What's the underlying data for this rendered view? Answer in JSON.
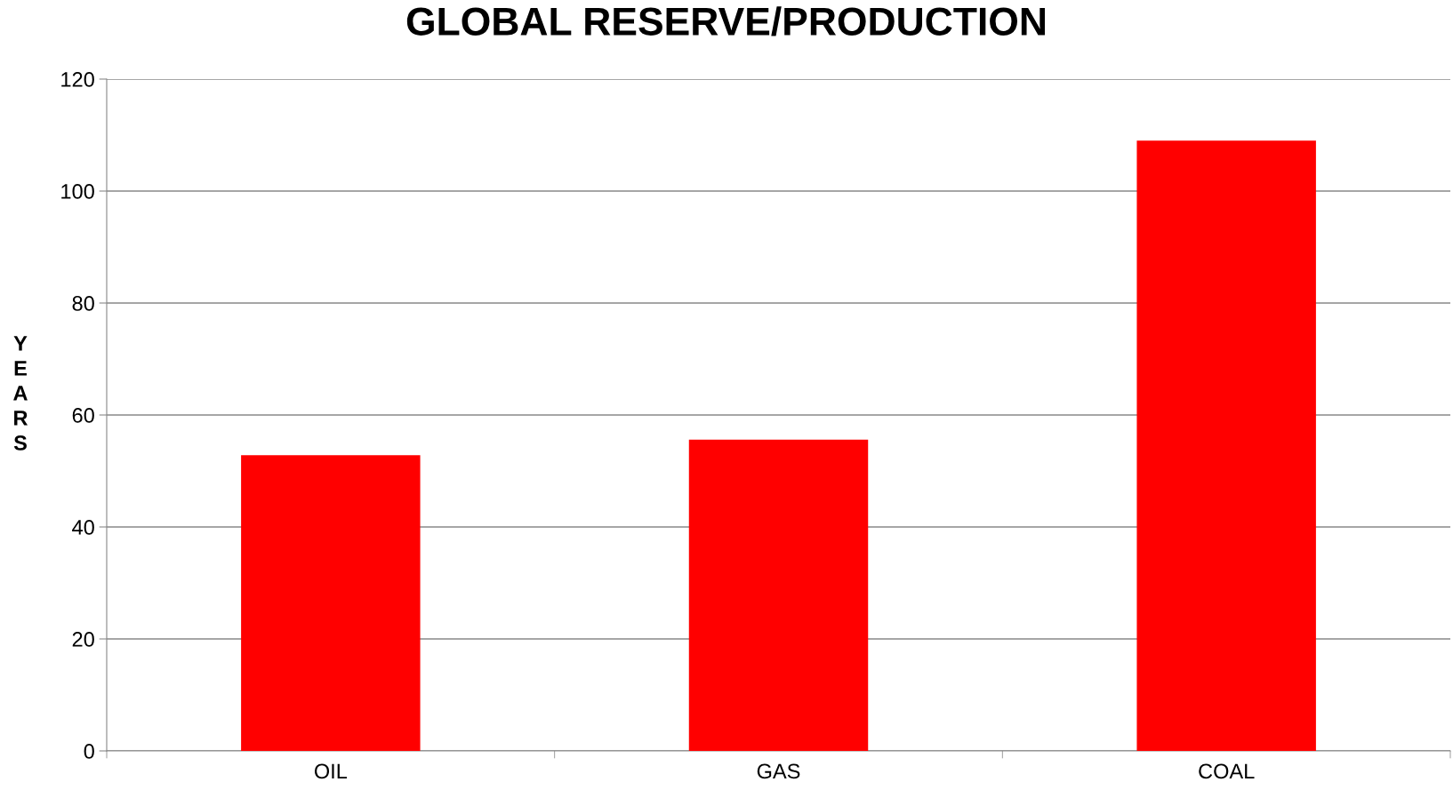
{
  "chart_data": {
    "type": "bar",
    "title": "GLOBAL RESERVE/PRODUCTION",
    "ylabel": "YEARS",
    "categories": [
      "OIL",
      "GAS",
      "COAL"
    ],
    "values": [
      52.8,
      55.6,
      109
    ],
    "color": "#ff0000",
    "ylim": [
      0,
      120
    ],
    "yticks": [
      0,
      20,
      40,
      60,
      80,
      100,
      120
    ],
    "grid": "y"
  }
}
